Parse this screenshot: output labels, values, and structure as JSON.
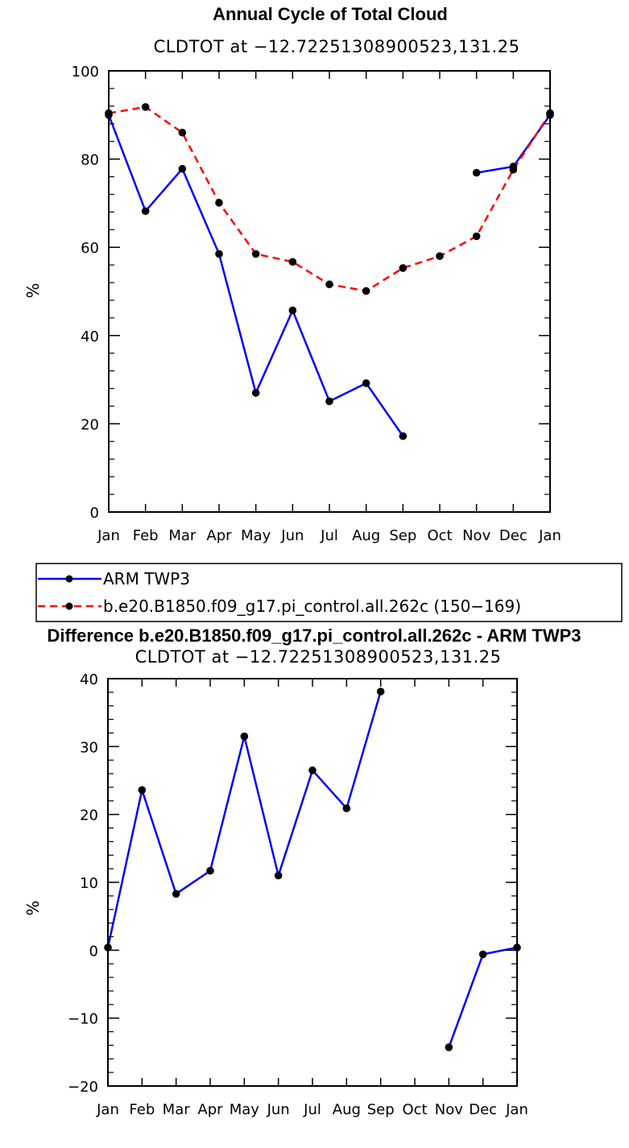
{
  "chart_data": [
    {
      "type": "line",
      "title": "Annual Cycle of Total Cloud",
      "subtitle": "CLDTOT at −12.72251308900523,131.25",
      "xlabel": "",
      "ylabel": "%",
      "ylim": [
        0,
        100
      ],
      "yticks": [
        0,
        20,
        40,
        60,
        80,
        100
      ],
      "ytick_labels": [
        "0",
        "20",
        "40",
        "60",
        "80",
        "100"
      ],
      "categories": [
        "Jan",
        "Feb",
        "Mar",
        "Apr",
        "May",
        "Jun",
        "Jul",
        "Aug",
        "Sep",
        "Oct",
        "Nov",
        "Dec",
        "Jan"
      ],
      "series": [
        {
          "name": "ARM TWP3",
          "color": "#0000ff",
          "dash": "solid",
          "values": [
            90.0,
            68.2,
            77.8,
            58.5,
            27.0,
            45.7,
            25.1,
            29.2,
            17.2,
            null,
            76.9,
            78.3,
            90.0
          ]
        },
        {
          "name": "b.e20.B1850.f09_g17.pi_control.all.262c (150−169)",
          "color": "#ff0000",
          "dash": "dashed",
          "values": [
            90.4,
            91.8,
            86.0,
            70.1,
            58.5,
            56.7,
            51.6,
            50.1,
            55.3,
            58.0,
            62.5,
            77.6,
            90.4
          ]
        }
      ]
    },
    {
      "type": "line",
      "title": "Difference b.e20.B1850.f09_g17.pi_control.all.262c - ARM TWP3",
      "subtitle": "CLDTOT at −12.72251308900523,131.25",
      "xlabel": "",
      "ylabel": "%",
      "ylim": [
        -20,
        40
      ],
      "yticks": [
        -20,
        -10,
        0,
        10,
        20,
        30,
        40
      ],
      "ytick_labels": [
        "−20",
        "−10",
        "0",
        "10",
        "20",
        "30",
        "40"
      ],
      "categories": [
        "Jan",
        "Feb",
        "Mar",
        "Apr",
        "May",
        "Jun",
        "Jul",
        "Aug",
        "Sep",
        "Oct",
        "Nov",
        "Dec",
        "Jan"
      ],
      "series": [
        {
          "name": "Difference",
          "color": "#0000ff",
          "dash": "solid",
          "values": [
            0.4,
            23.6,
            8.3,
            11.7,
            31.5,
            11.0,
            26.5,
            20.9,
            38.1,
            null,
            -14.3,
            -0.6,
            0.4
          ]
        }
      ]
    }
  ]
}
